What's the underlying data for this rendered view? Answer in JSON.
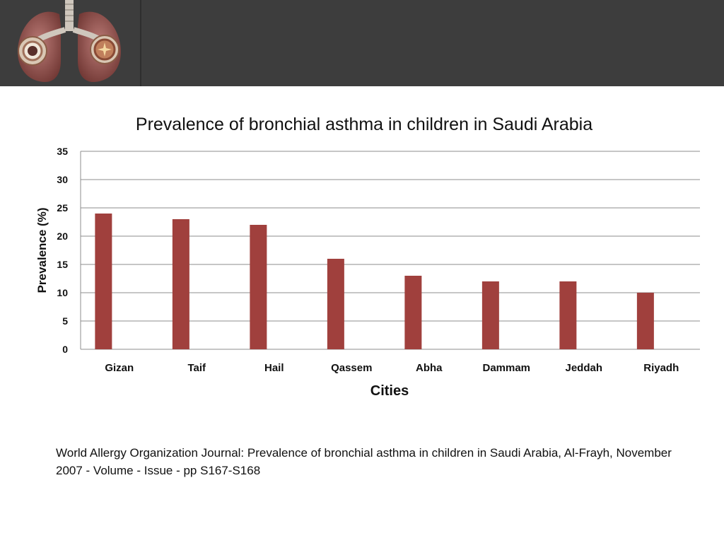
{
  "slide": {
    "citation": "World Allergy Organization Journal: Prevalence of bronchial asthma in children in Saudi Arabia, Al-Frayh, November 2007 - Volume - Issue - pp S167-S168"
  },
  "colors": {
    "header": "#3d3d3d",
    "bar": "#a0403d",
    "grid": "#8c8c8c"
  },
  "icons": {
    "logo": "lungs-icon"
  },
  "chart_data": {
    "type": "bar",
    "title": "Prevalence of bronchial asthma in children in Saudi Arabia",
    "xlabel": "Cities",
    "ylabel": "Prevalence (%)",
    "categories": [
      "Gizan",
      "Taif",
      "Hail",
      "Qassem",
      "Abha",
      "Dammam",
      "Jeddah",
      "Riyadh"
    ],
    "values": [
      24,
      23,
      22,
      16,
      13,
      12,
      12,
      10
    ],
    "ylim": [
      0,
      35
    ],
    "yticks": [
      0,
      5,
      10,
      15,
      20,
      25,
      30,
      35
    ],
    "grid": true,
    "legend": "none"
  }
}
